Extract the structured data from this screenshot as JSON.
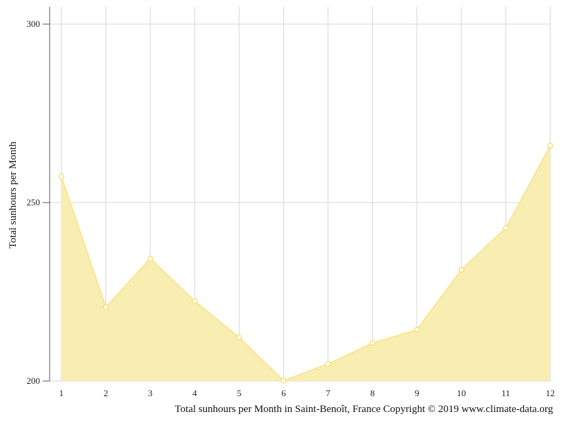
{
  "chart_data": {
    "type": "area",
    "x": [
      "1",
      "2",
      "3",
      "4",
      "5",
      "6",
      "7",
      "8",
      "9",
      "10",
      "11",
      "12"
    ],
    "series": [
      {
        "values": [
          257.3,
          220.7,
          234.3,
          222.4,
          212.2,
          200.1,
          204.8,
          210.6,
          214.4,
          231.2,
          242.9,
          265.9
        ]
      }
    ],
    "ylabel": "Total sunhours per Month",
    "xlabel": "",
    "y_ticks": [
      "200",
      "250",
      "300"
    ],
    "ylim": [
      200,
      305
    ],
    "grid": true,
    "caption": "Total sunhours per Month in Saint-Benoît, France Copyright © 2019 www.climate-data.org",
    "colors": {
      "fill": "#f9eeb1",
      "line": "#f8e596",
      "marker_stroke": "#f3dc6a",
      "marker_fill": "#ffffff"
    }
  }
}
